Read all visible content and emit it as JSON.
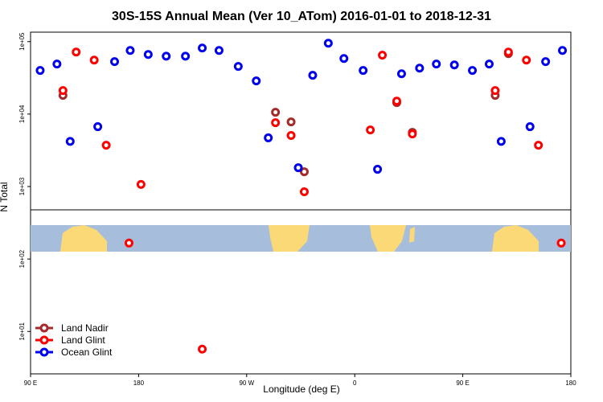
{
  "chart_data": {
    "type": "scatter",
    "title": "30S-15S Annual Mean (Ver 10_ATom)   2016-01-01 to 2018-12-31",
    "x_label": "Longitude (deg E)",
    "y_label": "N Total",
    "xlim": [
      90,
      540
    ],
    "xticks": [
      {
        "value": 90,
        "label": "90 E"
      },
      180,
      {
        "value": 270,
        "label": "90 W"
      },
      {
        "value": 360,
        "label": "0"
      },
      {
        "value": 450,
        "label": "90 E"
      },
      {
        "value": 540,
        "label": "180"
      }
    ],
    "ylim": [
      2.6,
      135000
    ],
    "log_y": true,
    "yticks": [
      {
        "value": 10,
        "label": "1e+01"
      },
      {
        "value": 100,
        "label": "1e+02"
      },
      {
        "value": 1000,
        "label": "1e+03"
      },
      {
        "value": 10000,
        "label": "1e+04"
      },
      {
        "value": 100000,
        "label": "1e+05"
      }
    ],
    "legend": "lower left",
    "series": [
      {
        "name": "Land Nadir",
        "color": "#a52a2a",
        "x": [
          117,
          294,
          307,
          318,
          395,
          408,
          477,
          488
        ],
        "values": [
          18100,
          10600,
          7800,
          1600,
          14400,
          5600,
          18100,
          68200
        ]
      },
      {
        "name": "Land Glint",
        "color": "#ff0000",
        "x": [
          117,
          128,
          143,
          153,
          182,
          172,
          233,
          294,
          307,
          318,
          373,
          383,
          395,
          408,
          477,
          488,
          503,
          513,
          532
        ],
        "values": [
          21100,
          71800,
          55600,
          3720,
          1070,
          166,
          5.7,
          7600,
          5060,
          847,
          6040,
          64900,
          15100,
          5320,
          21100,
          71800,
          55600,
          3720,
          166
        ]
      },
      {
        "name": "Ocean Glint",
        "color": "#0000ee",
        "x": [
          98,
          112,
          123,
          146,
          160,
          173,
          188,
          203,
          219,
          233,
          247,
          263,
          278,
          288,
          313,
          325,
          338,
          351,
          367,
          379,
          399,
          414,
          428,
          443,
          458,
          472,
          482,
          506,
          519,
          533
        ],
        "values": [
          40000,
          49000,
          4200,
          6700,
          53000,
          75500,
          66500,
          63000,
          63000,
          81500,
          75500,
          45400,
          28700,
          4700,
          1820,
          34300,
          95000,
          58500,
          40000,
          1730,
          36000,
          43000,
          49000,
          47700,
          40000,
          49000,
          4200,
          6700,
          53000,
          75500
        ]
      }
    ]
  }
}
